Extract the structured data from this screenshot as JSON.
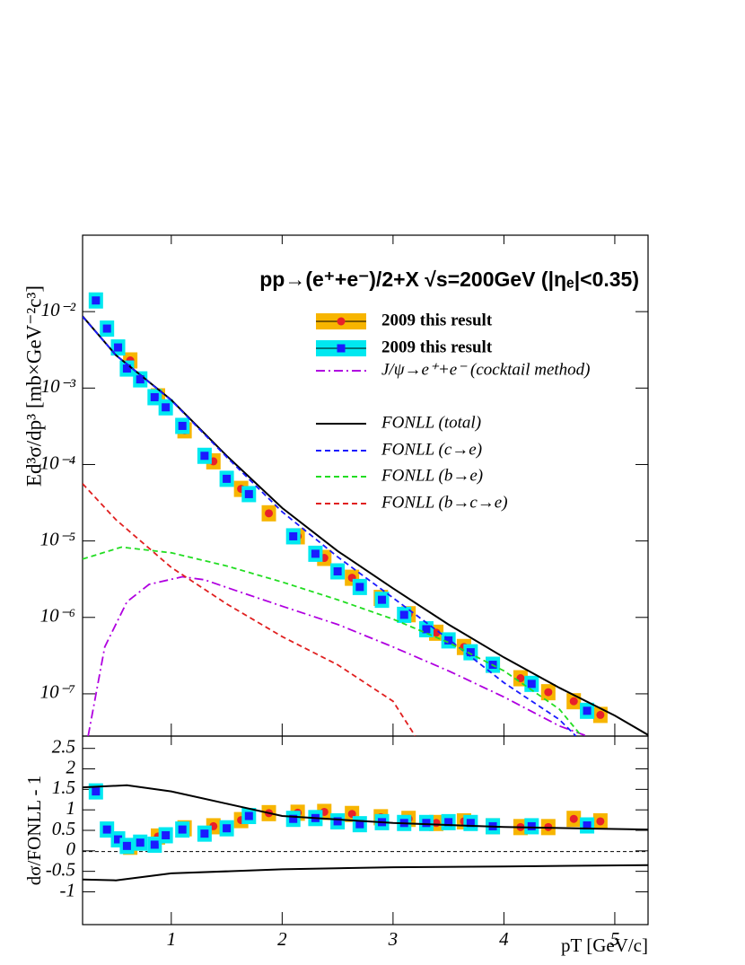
{
  "chart_data": [
    {
      "type": "line",
      "title": "pp→(e⁺+e⁻)/2+X  √s=200GeV (|ηₑ|<0.35)",
      "y_label": "Ed³σ/dp³ [mb×GeV⁻²c³]",
      "y_log": true,
      "xlim": [
        0.2,
        5.3
      ],
      "ylim": [
        2.8e-08,
        0.1
      ],
      "xticks": [
        1,
        2,
        3,
        4,
        5
      ],
      "yticks": [
        {
          "value": 0.01,
          "label": "10⁻²"
        },
        {
          "value": 0.001,
          "label": "10⁻³"
        },
        {
          "value": 0.0001,
          "label": "10⁻⁴"
        },
        {
          "value": 1e-05,
          "label": "10⁻⁵"
        },
        {
          "value": 1e-06,
          "label": "10⁻⁶"
        },
        {
          "value": 1e-07,
          "label": "10⁻⁷"
        }
      ],
      "legend": "upper right",
      "series": [
        {
          "name": "2009 this result",
          "style": "points",
          "marker": "circle",
          "color": "#e8202a",
          "box_color": "#f7b500",
          "x": [
            0.63,
            0.88,
            1.12,
            1.38,
            1.63,
            1.88,
            2.14,
            2.38,
            2.63,
            2.89,
            3.14,
            3.39,
            3.64,
            3.9,
            4.15,
            4.4,
            4.63,
            4.87
          ],
          "values": [
            0.0023,
            0.00078,
            0.00028,
            0.00011,
            4.8e-05,
            2.3e-05,
            1.15e-05,
            6e-06,
            3.3e-06,
            1.8e-06,
            1.1e-06,
            6.3e-07,
            4.1e-07,
            2.4e-07,
            1.6e-07,
            1.05e-07,
            8e-08,
            5.3e-08
          ]
        },
        {
          "name": "2009 this result",
          "style": "points",
          "marker": "square",
          "color": "#1a1aff",
          "box_color": "#00e8f0",
          "x": [
            0.32,
            0.42,
            0.52,
            0.6,
            0.72,
            0.85,
            0.95,
            1.1,
            1.3,
            1.5,
            1.7,
            2.1,
            2.3,
            2.5,
            2.7,
            2.9,
            3.1,
            3.3,
            3.5,
            3.7,
            3.9,
            4.25,
            4.75
          ],
          "values": [
            0.014,
            0.006,
            0.0034,
            0.0018,
            0.0013,
            0.00076,
            0.00056,
            0.00032,
            0.00013,
            6.5e-05,
            4.1e-05,
            1.15e-05,
            6.8e-06,
            4e-06,
            2.5e-06,
            1.7e-06,
            1.08e-06,
            7e-07,
            5e-07,
            3.5e-07,
            2.4e-07,
            1.35e-07,
            6e-08
          ]
        },
        {
          "name": "J/ψ→e⁺+e⁻ (cocktail method)",
          "style": "dashdot",
          "color": "#b000e0",
          "x": [
            0.25,
            0.4,
            0.6,
            0.8,
            1.1,
            1.3,
            1.6,
            2.0,
            2.5,
            3.0,
            3.5,
            4.0,
            4.5,
            4.75
          ],
          "values": [
            2.8e-08,
            4.1e-07,
            1.6e-06,
            2.7e-06,
            3.4e-06,
            3.1e-06,
            2.2e-06,
            1.4e-06,
            8.1e-07,
            4.1e-07,
            2e-07,
            9.1e-08,
            3.8e-08,
            2.8e-08
          ]
        },
        {
          "name": "FONLL (total)",
          "style": "solid",
          "color": "#000000",
          "x": [
            0.2,
            0.5,
            1,
            1.5,
            2,
            2.5,
            3,
            3.5,
            4,
            4.5,
            5,
            5.3
          ],
          "values": [
            0.0087,
            0.0027,
            0.0007,
            0.00013,
            2.7e-05,
            7.4e-06,
            2.4e-06,
            8.1e-07,
            3e-07,
            1.2e-07,
            5.2e-08,
            2.9e-08
          ]
        },
        {
          "name": "FONLL (c→e)",
          "style": "dashed",
          "color": "#1a1aff",
          "x": [
            0.2,
            0.5,
            1,
            1.5,
            2,
            2.5,
            3,
            3.5,
            4,
            4.5,
            4.65
          ],
          "values": [
            0.0086,
            0.0027,
            0.00069,
            0.000125,
            2.4e-05,
            6.2e-06,
            1.8e-06,
            5.2e-07,
            1.4e-07,
            4.6e-08,
            2.8e-08
          ]
        },
        {
          "name": "FONLL (b→e)",
          "style": "dashed",
          "color": "#22dd22",
          "x": [
            0.2,
            0.55,
            1,
            1.5,
            2,
            2.5,
            3,
            3.5,
            4,
            4.5,
            4.7
          ],
          "values": [
            5.8e-06,
            8.3e-06,
            7e-06,
            4.7e-06,
            2.9e-06,
            1.7e-06,
            9.5e-07,
            4.7e-07,
            2e-07,
            6.3e-08,
            2.8e-08
          ]
        },
        {
          "name": "FONLL (b→c→e)",
          "style": "dashed",
          "color": "#e02020",
          "x": [
            0.2,
            0.5,
            1,
            1.5,
            2,
            2.5,
            3,
            3.2
          ],
          "values": [
            5.6e-05,
            1.9e-05,
            4.5e-06,
            1.5e-06,
            5.6e-07,
            2.4e-07,
            8e-08,
            2.8e-08
          ]
        }
      ]
    },
    {
      "type": "line",
      "y_label": "dσ/FONLL - 1",
      "x_label": "pT [GeV/c]",
      "xlim": [
        0.2,
        5.3
      ],
      "ylim": [
        -1.8,
        2.8
      ],
      "xticks": [
        1,
        2,
        3,
        4,
        5
      ],
      "yticks": [
        2.5,
        2,
        1.5,
        1,
        0.5,
        0,
        -0.5,
        -1
      ],
      "series": [
        {
          "style": "points",
          "marker": "circle",
          "color": "#e8202a",
          "box_color": "#f7b500",
          "x": [
            0.63,
            0.88,
            1.12,
            1.38,
            1.63,
            1.88,
            2.14,
            2.38,
            2.63,
            2.89,
            3.14,
            3.39,
            3.64,
            3.9,
            4.15,
            4.4,
            4.63,
            4.87
          ],
          "values": [
            0.1,
            0.35,
            0.55,
            0.6,
            0.75,
            0.92,
            0.93,
            0.95,
            0.9,
            0.82,
            0.78,
            0.68,
            0.72,
            0.6,
            0.58,
            0.58,
            0.78,
            0.72
          ]
        },
        {
          "style": "points",
          "marker": "square",
          "color": "#1a1aff",
          "box_color": "#00e8f0",
          "x": [
            0.32,
            0.42,
            0.52,
            0.6,
            0.72,
            0.85,
            0.95,
            1.1,
            1.3,
            1.5,
            1.7,
            2.1,
            2.3,
            2.5,
            2.7,
            2.9,
            3.1,
            3.3,
            3.5,
            3.7,
            3.9,
            4.25,
            4.75
          ],
          "values": [
            1.45,
            0.52,
            0.28,
            0.12,
            0.2,
            0.15,
            0.38,
            0.52,
            0.42,
            0.55,
            0.85,
            0.78,
            0.8,
            0.72,
            0.65,
            0.7,
            0.68,
            0.68,
            0.7,
            0.68,
            0.6,
            0.6,
            0.62
          ]
        },
        {
          "style": "solid",
          "color": "#000000",
          "x": [
            0.2,
            0.6,
            1,
            1.5,
            2,
            3,
            4,
            5.3
          ],
          "values": [
            1.55,
            1.6,
            1.45,
            1.15,
            0.85,
            0.68,
            0.58,
            0.52
          ]
        },
        {
          "style": "solid",
          "color": "#000000",
          "x": [
            0.2,
            0.5,
            1,
            2,
            3,
            4,
            5.3
          ],
          "values": [
            -0.7,
            -0.72,
            -0.55,
            -0.45,
            -0.4,
            -0.38,
            -0.35
          ]
        }
      ]
    }
  ]
}
